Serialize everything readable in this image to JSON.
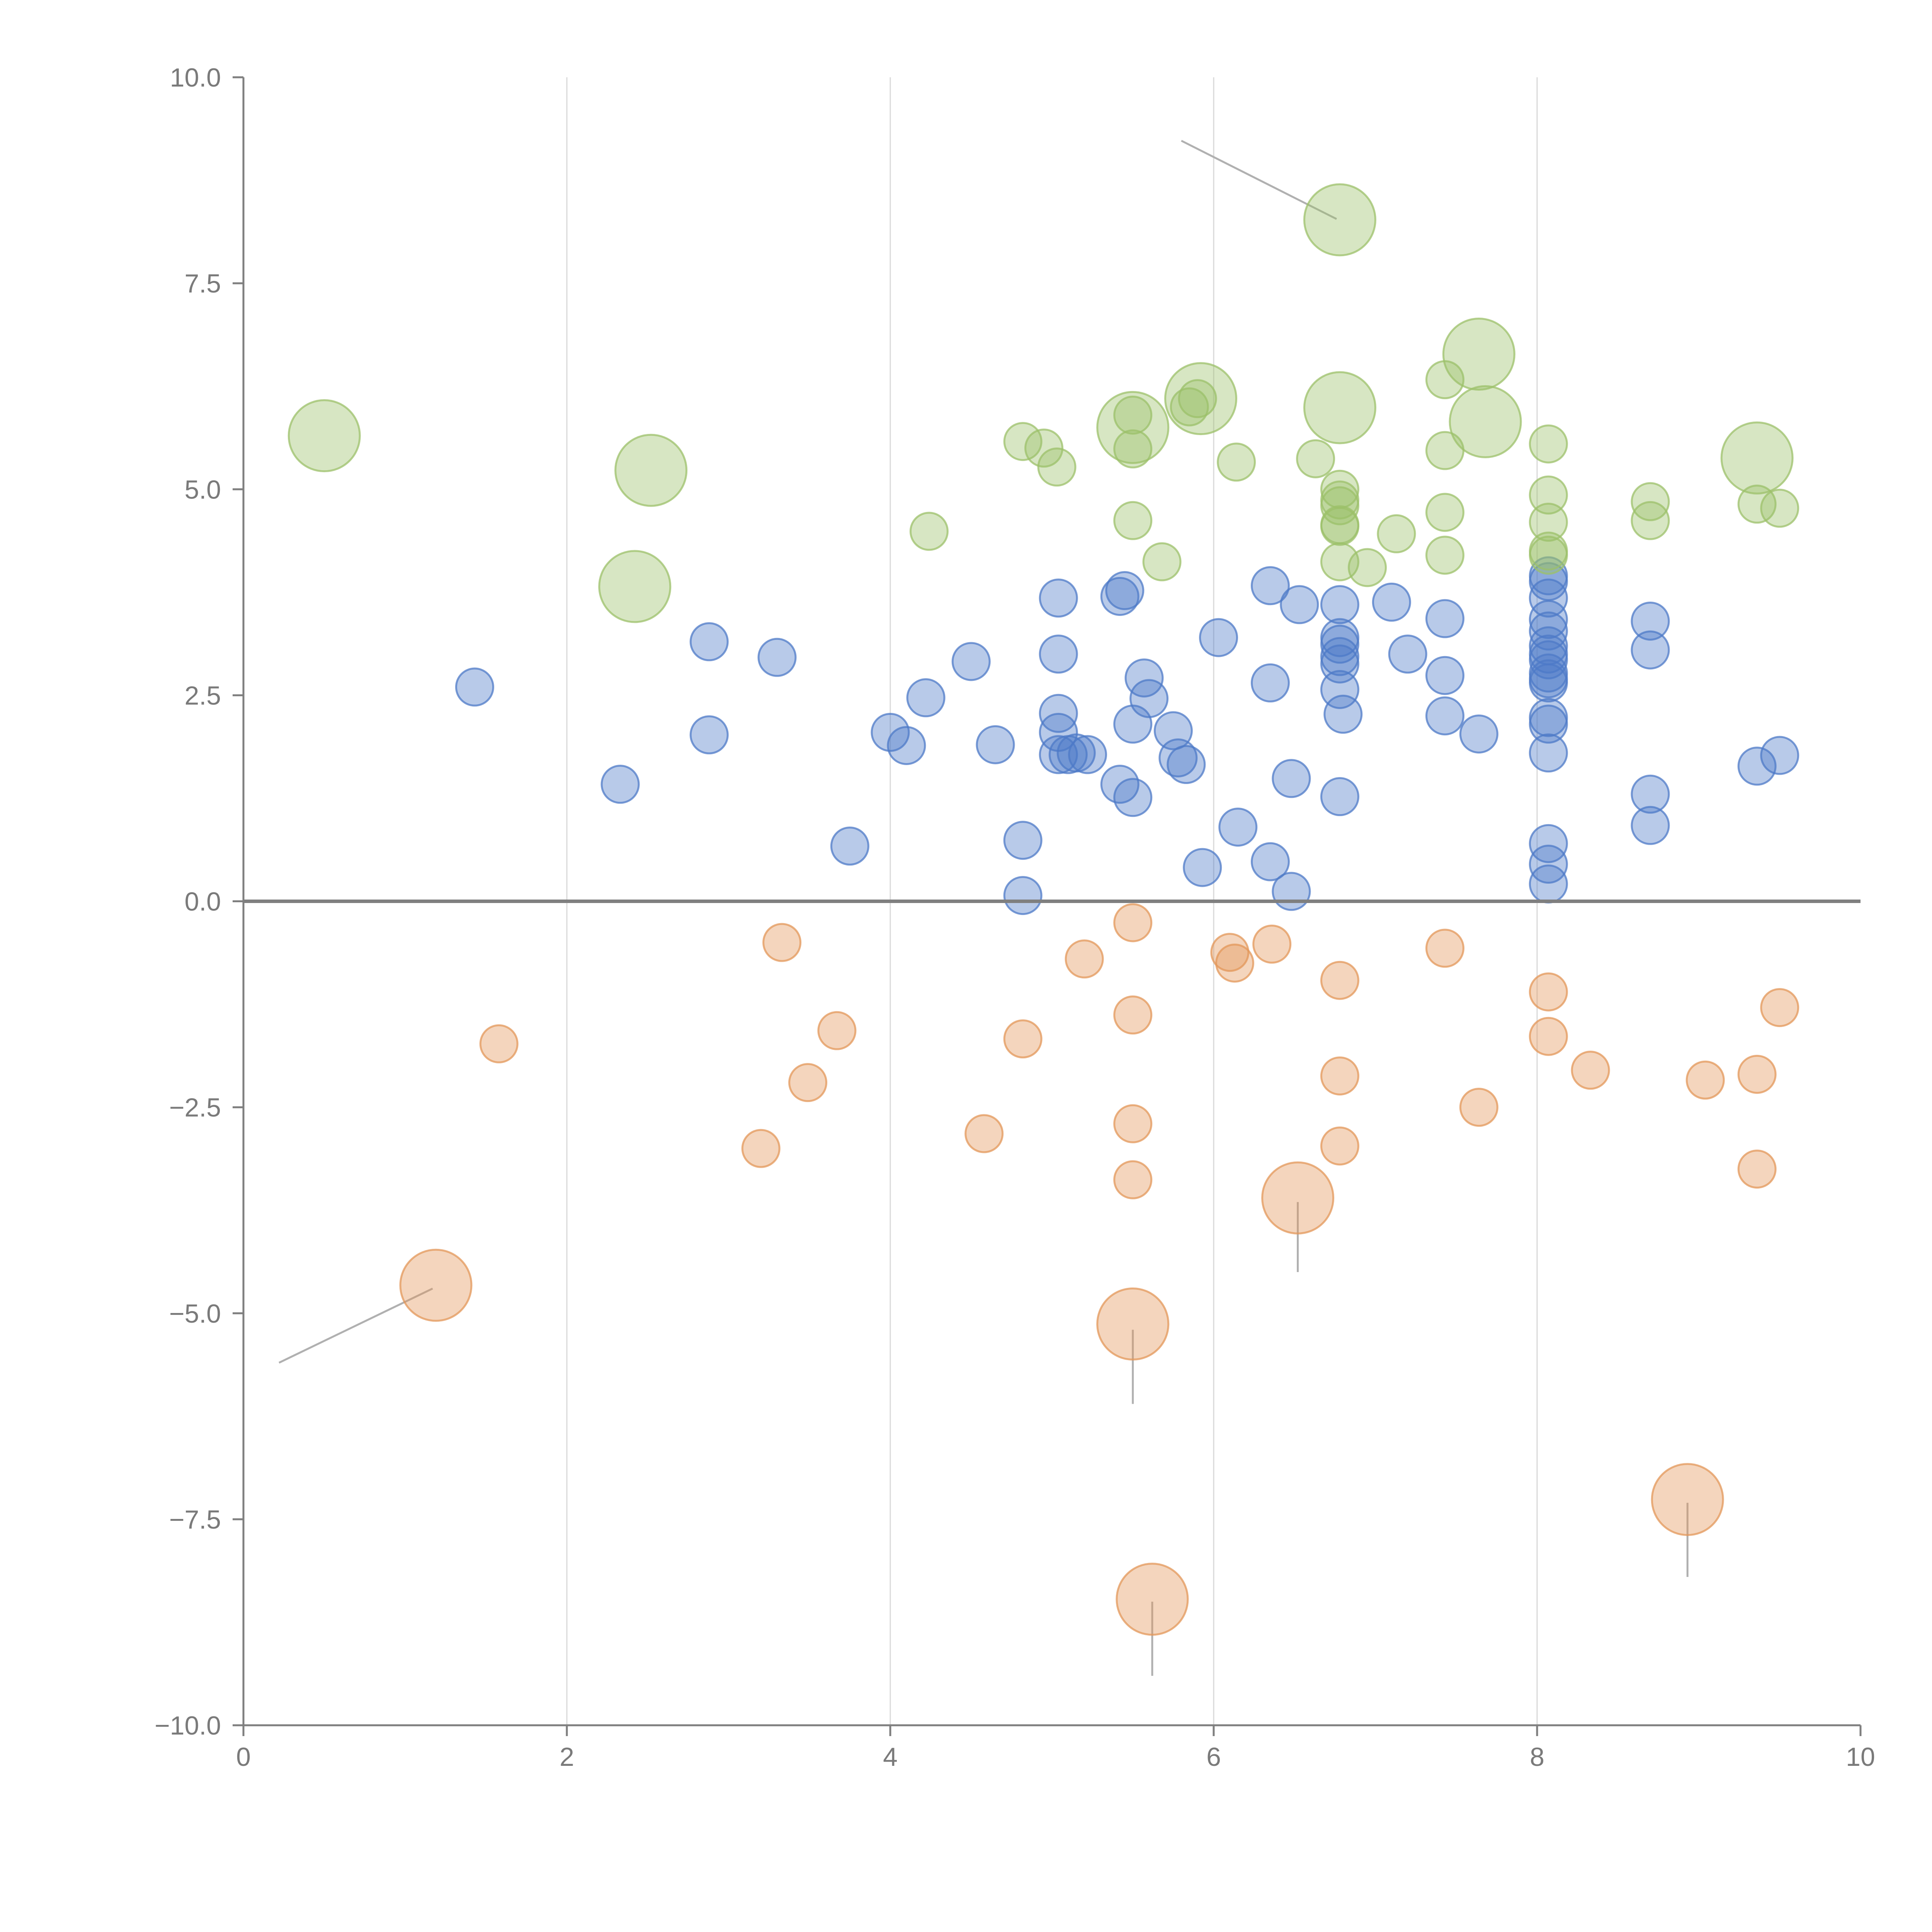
{
  "chart_data": {
    "type": "scatter",
    "title": "",
    "xlabel": "",
    "ylabel": "",
    "xlim": [
      0,
      10
    ],
    "ylim": [
      -10,
      10
    ],
    "x_ticks": [
      0,
      2,
      4,
      6,
      8,
      10
    ],
    "x_tick_labels": [
      "0",
      "2",
      "4",
      "6",
      "8",
      "10"
    ],
    "y_ticks": [
      10,
      7.5,
      5,
      2.5,
      0,
      -2.5,
      -5,
      -7.5,
      -10
    ],
    "y_tick_labels": [
      "10.0",
      "7.5",
      "5.0",
      "2.5",
      "0.0",
      "−2.5",
      "−5.0",
      "−7.5",
      "−10.0"
    ],
    "vertical_grid": [
      2,
      4,
      6,
      8
    ],
    "reference_line_y": 0,
    "series": [
      {
        "name": "blue",
        "color": "#4e7ac7",
        "fill_opacity": 0.4,
        "points": [
          [
            1.43,
            2.6
          ],
          [
            2.33,
            1.42
          ],
          [
            2.88,
            3.15
          ],
          [
            2.88,
            2.02
          ],
          [
            3.3,
            2.96
          ],
          [
            3.75,
            0.67
          ],
          [
            4.0,
            2.05
          ],
          [
            4.1,
            1.89
          ],
          [
            4.22,
            2.47
          ],
          [
            4.5,
            2.91
          ],
          [
            4.65,
            1.9
          ],
          [
            4.82,
            0.74
          ],
          [
            4.82,
            0.07
          ],
          [
            5.04,
            3.68
          ],
          [
            5.04,
            3.0
          ],
          [
            5.04,
            2.28
          ],
          [
            5.04,
            2.05
          ],
          [
            5.04,
            1.78
          ],
          [
            5.1,
            1.78
          ],
          [
            5.15,
            1.8
          ],
          [
            5.22,
            1.78
          ],
          [
            5.42,
            3.7
          ],
          [
            5.45,
            3.77
          ],
          [
            5.5,
            2.15
          ],
          [
            5.42,
            1.42
          ],
          [
            5.5,
            1.26
          ],
          [
            5.57,
            2.71
          ],
          [
            5.6,
            2.46
          ],
          [
            5.75,
            2.07
          ],
          [
            5.78,
            1.74
          ],
          [
            5.83,
            1.66
          ],
          [
            5.93,
            0.41
          ],
          [
            6.03,
            3.2
          ],
          [
            6.15,
            0.9
          ],
          [
            6.35,
            3.83
          ],
          [
            6.35,
            2.65
          ],
          [
            6.35,
            0.48
          ],
          [
            6.48,
            1.49
          ],
          [
            6.48,
            0.12
          ],
          [
            6.53,
            3.6
          ],
          [
            6.78,
            3.6
          ],
          [
            6.78,
            3.2
          ],
          [
            6.78,
            3.12
          ],
          [
            6.78,
            2.97
          ],
          [
            6.78,
            2.88
          ],
          [
            6.78,
            2.57
          ],
          [
            6.78,
            1.27
          ],
          [
            6.8,
            2.27
          ],
          [
            7.1,
            3.63
          ],
          [
            7.2,
            3.0
          ],
          [
            7.43,
            3.43
          ],
          [
            7.43,
            2.74
          ],
          [
            7.43,
            2.25
          ],
          [
            7.64,
            2.03
          ],
          [
            8.07,
            3.95
          ],
          [
            8.07,
            3.88
          ],
          [
            8.07,
            3.68
          ],
          [
            8.07,
            3.42
          ],
          [
            8.07,
            3.28
          ],
          [
            8.07,
            3.1
          ],
          [
            8.07,
            3.0
          ],
          [
            8.07,
            2.93
          ],
          [
            8.07,
            2.77
          ],
          [
            8.07,
            2.7
          ],
          [
            8.07,
            2.65
          ],
          [
            8.07,
            2.23
          ],
          [
            8.07,
            2.15
          ],
          [
            8.07,
            1.8
          ],
          [
            8.07,
            0.7
          ],
          [
            8.07,
            0.45
          ],
          [
            8.07,
            0.21
          ],
          [
            8.7,
            3.4
          ],
          [
            8.7,
            3.05
          ],
          [
            8.7,
            1.3
          ],
          [
            8.7,
            0.92
          ],
          [
            9.36,
            1.64
          ],
          [
            9.5,
            1.77
          ]
        ],
        "large_points": []
      },
      {
        "name": "green",
        "color": "#9cc069",
        "fill_opacity": 0.4,
        "points": [
          [
            4.24,
            4.49
          ],
          [
            4.82,
            5.58
          ],
          [
            4.95,
            5.5
          ],
          [
            5.03,
            5.27
          ],
          [
            5.5,
            5.9
          ],
          [
            5.5,
            5.49
          ],
          [
            5.5,
            4.62
          ],
          [
            5.68,
            4.12
          ],
          [
            5.85,
            6.0
          ],
          [
            5.9,
            6.1
          ],
          [
            6.14,
            5.33
          ],
          [
            6.63,
            5.37
          ],
          [
            6.78,
            5.0
          ],
          [
            6.78,
            4.87
          ],
          [
            6.78,
            4.8
          ],
          [
            6.78,
            4.57
          ],
          [
            6.78,
            4.55
          ],
          [
            6.78,
            4.12
          ],
          [
            6.95,
            4.05
          ],
          [
            7.13,
            4.46
          ],
          [
            7.43,
            6.33
          ],
          [
            7.43,
            5.47
          ],
          [
            7.43,
            4.72
          ],
          [
            7.43,
            4.2
          ],
          [
            8.07,
            5.55
          ],
          [
            8.07,
            4.93
          ],
          [
            8.07,
            4.6
          ],
          [
            8.07,
            4.25
          ],
          [
            8.07,
            4.2
          ],
          [
            8.7,
            4.85
          ],
          [
            8.7,
            4.62
          ],
          [
            9.36,
            4.82
          ],
          [
            9.5,
            4.77
          ]
        ],
        "large_points": [
          [
            0.5,
            5.65
          ],
          [
            2.42,
            3.82
          ],
          [
            2.52,
            5.23
          ],
          [
            5.5,
            5.75
          ],
          [
            5.92,
            6.1
          ],
          [
            6.78,
            8.27
          ],
          [
            6.78,
            5.99
          ],
          [
            7.64,
            6.64
          ],
          [
            7.68,
            5.82
          ],
          [
            9.36,
            5.38
          ]
        ]
      },
      {
        "name": "orange",
        "color": "#e3975a",
        "fill_opacity": 0.4,
        "points": [
          [
            1.58,
            -1.73
          ],
          [
            3.2,
            -3.0
          ],
          [
            3.33,
            -0.5
          ],
          [
            3.49,
            -2.2
          ],
          [
            3.67,
            -1.57
          ],
          [
            4.58,
            -2.82
          ],
          [
            4.82,
            -1.67
          ],
          [
            5.2,
            -0.7
          ],
          [
            5.5,
            -0.26
          ],
          [
            5.5,
            -1.38
          ],
          [
            5.5,
            -2.7
          ],
          [
            5.5,
            -3.38
          ],
          [
            6.1,
            -0.62
          ],
          [
            6.13,
            -0.75
          ],
          [
            6.36,
            -0.52
          ],
          [
            6.78,
            -0.96
          ],
          [
            6.78,
            -2.12
          ],
          [
            6.78,
            -2.97
          ],
          [
            7.43,
            -0.57
          ],
          [
            7.64,
            -2.5
          ],
          [
            8.07,
            -1.1
          ],
          [
            8.07,
            -1.64
          ],
          [
            8.33,
            -2.05
          ],
          [
            9.04,
            -2.17
          ],
          [
            9.36,
            -2.1
          ],
          [
            9.36,
            -3.25
          ],
          [
            9.5,
            -1.29
          ]
        ],
        "large_points": [
          [
            1.19,
            -4.66
          ],
          [
            5.5,
            -5.13
          ],
          [
            5.62,
            -8.47
          ],
          [
            6.52,
            -3.6
          ],
          [
            8.93,
            -7.26
          ]
        ]
      }
    ],
    "annotation_leaders": [
      [
        [
          0.22,
          -5.6
        ],
        [
          1.17,
          -4.7
        ]
      ],
      [
        [
          5.5,
          -6.1
        ],
        [
          5.5,
          -5.2
        ]
      ],
      [
        [
          5.62,
          -9.4
        ],
        [
          5.62,
          -8.5
        ]
      ],
      [
        [
          6.52,
          -4.5
        ],
        [
          6.52,
          -3.65
        ]
      ],
      [
        [
          8.93,
          -8.2
        ],
        [
          8.93,
          -7.3
        ]
      ],
      [
        [
          5.8,
          9.23
        ],
        [
          6.76,
          8.28
        ]
      ]
    ]
  }
}
